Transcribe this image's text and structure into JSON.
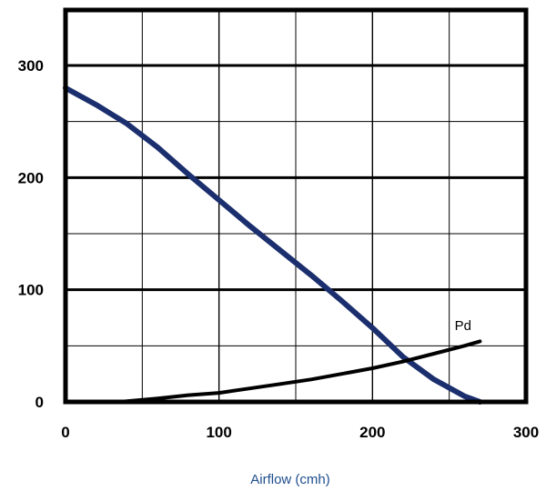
{
  "chart_data": {
    "type": "line",
    "xlabel": "Airflow (cmh)",
    "ylabel": "",
    "xlim": [
      0,
      300
    ],
    "ylim": [
      0,
      300
    ],
    "x_ticks": [
      0,
      100,
      200,
      300
    ],
    "y_ticks": [
      0,
      100,
      200,
      300
    ],
    "x_tick_labels": [
      "0",
      "100",
      "200",
      "300"
    ],
    "y_tick_labels": [
      "0",
      "100",
      "200",
      "300"
    ],
    "grid": true,
    "series": [
      {
        "color": "#1b2f6e",
        "x": [
          0,
          20,
          40,
          60,
          80,
          100,
          120,
          140,
          160,
          180,
          200,
          220,
          240,
          260,
          270
        ],
        "y": [
          280,
          265,
          248,
          227,
          203,
          180,
          157,
          135,
          113,
          90,
          66,
          40,
          20,
          5,
          0
        ]
      },
      {
        "name": "Pd",
        "color": "#000000",
        "x": [
          35,
          60,
          80,
          100,
          120,
          140,
          160,
          180,
          200,
          220,
          240,
          260,
          270
        ],
        "y": [
          0,
          3,
          6,
          8,
          12,
          16,
          20,
          25,
          30,
          36,
          43,
          50,
          54
        ]
      }
    ],
    "annotations": [
      {
        "text": "Pd",
        "x": 259,
        "y": 64
      }
    ]
  }
}
